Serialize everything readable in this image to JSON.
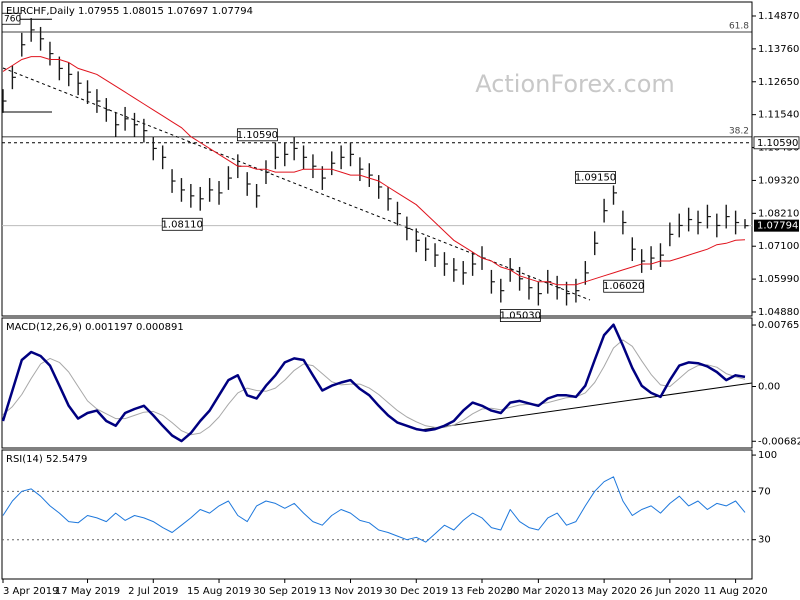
{
  "chart_data": [
    {
      "type": "ohlc",
      "title": "EURCHF,Daily  1.07955 1.08015 1.07697 1.07794",
      "watermark": "ActionForex.com",
      "bar_color": "#1a1a1a",
      "xlim": [
        0,
        79
      ],
      "ylim": [
        1.04745,
        1.15342
      ],
      "yticks": [
        {
          "value": 1.1487,
          "label": "1.14870"
        },
        {
          "value": 1.1376,
          "label": "1.13760"
        },
        {
          "value": 1.1265,
          "label": "1.12650"
        },
        {
          "value": 1.1154,
          "label": "1.11540"
        },
        {
          "value": 1.1043,
          "label": "1.10430"
        },
        {
          "value": 1.0932,
          "label": "1.09320"
        },
        {
          "value": 1.0821,
          "label": "1.08210"
        },
        {
          "value": 1.071,
          "label": "1.07100"
        },
        {
          "value": 1.0599,
          "label": "1.05990"
        },
        {
          "value": 1.0488,
          "label": "1.04880"
        }
      ],
      "high": [
        1.124,
        1.132,
        1.143,
        1.148,
        1.145,
        1.14,
        1.135,
        1.133,
        1.13,
        1.127,
        1.124,
        1.121,
        1.116,
        1.118,
        1.116,
        1.114,
        1.108,
        1.105,
        1.097,
        1.094,
        1.092,
        1.091,
        1.094,
        1.093,
        1.098,
        1.102,
        1.096,
        1.092,
        1.1,
        1.106,
        1.106,
        1.108,
        1.105,
        1.102,
        1.098,
        1.103,
        1.105,
        1.106,
        1.101,
        1.099,
        1.095,
        1.091,
        1.086,
        1.081,
        1.077,
        1.074,
        1.072,
        1.069,
        1.067,
        1.066,
        1.069,
        1.071,
        1.063,
        1.06,
        1.067,
        1.064,
        1.061,
        1.059,
        1.063,
        1.061,
        1.059,
        1.06,
        1.066,
        1.076,
        1.087,
        1.0915,
        1.083,
        1.074,
        1.07,
        1.071,
        1.072,
        1.079,
        1.082,
        1.084,
        1.083,
        1.085,
        1.082,
        1.085,
        1.083,
        1.08015
      ],
      "low": [
        1.116,
        1.124,
        1.135,
        1.14,
        1.137,
        1.132,
        1.127,
        1.125,
        1.122,
        1.119,
        1.116,
        1.113,
        1.108,
        1.11,
        1.108,
        1.106,
        1.1,
        1.097,
        1.089,
        1.086,
        1.084,
        1.083,
        1.086,
        1.085,
        1.09,
        1.094,
        1.088,
        1.084,
        1.092,
        1.097,
        1.098,
        1.1,
        1.097,
        1.094,
        1.09,
        1.095,
        1.097,
        1.098,
        1.093,
        1.091,
        1.087,
        1.083,
        1.078,
        1.073,
        1.069,
        1.066,
        1.064,
        1.061,
        1.059,
        1.058,
        1.061,
        1.063,
        1.055,
        1.052,
        1.059,
        1.056,
        1.053,
        1.051,
        1.055,
        1.053,
        1.051,
        1.052,
        1.058,
        1.068,
        1.079,
        1.085,
        1.075,
        1.066,
        1.062,
        1.063,
        1.064,
        1.071,
        1.074,
        1.076,
        1.075,
        1.077,
        1.074,
        1.077,
        1.075,
        1.07697
      ],
      "close": [
        1.12,
        1.128,
        1.139,
        1.144,
        1.141,
        1.136,
        1.131,
        1.129,
        1.126,
        1.123,
        1.12,
        1.117,
        1.112,
        1.114,
        1.112,
        1.11,
        1.104,
        1.101,
        1.093,
        1.09,
        1.088,
        1.087,
        1.09,
        1.089,
        1.094,
        1.098,
        1.092,
        1.088,
        1.096,
        1.101,
        1.102,
        1.104,
        1.101,
        1.098,
        1.094,
        1.099,
        1.101,
        1.102,
        1.097,
        1.095,
        1.091,
        1.087,
        1.082,
        1.077,
        1.073,
        1.07,
        1.068,
        1.065,
        1.063,
        1.062,
        1.065,
        1.067,
        1.059,
        1.056,
        1.063,
        1.06,
        1.057,
        1.055,
        1.059,
        1.057,
        1.055,
        1.056,
        1.062,
        1.072,
        1.083,
        1.089,
        1.079,
        1.07,
        1.066,
        1.067,
        1.068,
        1.075,
        1.078,
        1.08,
        1.079,
        1.081,
        1.078,
        1.081,
        1.079,
        1.07794
      ],
      "ma": {
        "color": "#e0141e",
        "values": [
          1.13,
          1.132,
          1.134,
          1.135,
          1.135,
          1.134,
          1.134,
          1.133,
          1.131,
          1.13,
          1.129,
          1.127,
          1.125,
          1.123,
          1.121,
          1.119,
          1.117,
          1.115,
          1.113,
          1.111,
          1.108,
          1.106,
          1.104,
          1.102,
          1.1,
          1.098,
          1.098,
          1.097,
          1.097,
          1.096,
          1.096,
          1.096,
          1.097,
          1.097,
          1.097,
          1.097,
          1.096,
          1.095,
          1.095,
          1.094,
          1.093,
          1.091,
          1.089,
          1.087,
          1.085,
          1.082,
          1.079,
          1.076,
          1.073,
          1.071,
          1.069,
          1.067,
          1.066,
          1.064,
          1.063,
          1.061,
          1.06,
          1.059,
          1.059,
          1.058,
          1.058,
          1.058,
          1.059,
          1.06,
          1.061,
          1.062,
          1.063,
          1.064,
          1.065,
          1.065,
          1.066,
          1.066,
          1.067,
          1.068,
          1.069,
          1.07,
          1.0715,
          1.072,
          1.073,
          1.0732
        ]
      },
      "fibs": [
        {
          "value": 1.1433,
          "label": "61.8"
        },
        {
          "value": 1.1079,
          "label": "38.2"
        }
      ],
      "short_levels": [
        {
          "value": 1.1476,
          "label": "760"
        },
        {
          "value": 1.1163
        }
      ],
      "levels": [
        {
          "value": 1.1059,
          "label": "1.10590"
        }
      ],
      "last_price": {
        "value": 1.07794,
        "label": "1.07794"
      },
      "annotations": [
        {
          "index": 29,
          "value": 1.1059,
          "label": "1.10590"
        },
        {
          "index": 21,
          "value": 1.0811,
          "label": "1.08110"
        },
        {
          "index": 65,
          "value": 1.0915,
          "label": "1.09150"
        },
        {
          "index": 68,
          "value": 1.0602,
          "label": "1.06020"
        },
        {
          "index": 57,
          "value": 1.0503,
          "label": "1.05030"
        }
      ]
    },
    {
      "type": "line",
      "title": "MACD(12,26,9) 0.001197 0.000891",
      "xlim": [
        0,
        79
      ],
      "ylim": [
        -0.00766,
        0.00853
      ],
      "yticks": [
        0.007655,
        {
          "value": 0,
          "label": "0.00"
        },
        -0.006822
      ],
      "series": [
        {
          "color": "#000080",
          "values": [
            -0.0043,
            -0.0005,
            0.0033,
            0.0043,
            0.0038,
            0.0026,
            0.0001,
            -0.0024,
            -0.004,
            -0.0033,
            -0.003,
            -0.0043,
            -0.0049,
            -0.0033,
            -0.0028,
            -0.0024,
            -0.0036,
            -0.0049,
            -0.0061,
            -0.0068,
            -0.0058,
            -0.0043,
            -0.003,
            -0.0011,
            0.0008,
            0.0014,
            -0.0011,
            -0.0015,
            0.0001,
            0.0014,
            0.003,
            0.0035,
            0.0033,
            0.0014,
            -0.0005,
            0.0001,
            0.0005,
            0.0008,
            -0.0003,
            -0.0011,
            -0.0024,
            -0.0036,
            -0.0045,
            -0.0049,
            -0.0053,
            -0.0055,
            -0.0053,
            -0.0049,
            -0.0043,
            -0.003,
            -0.002,
            -0.0024,
            -0.003,
            -0.0033,
            -0.002,
            -0.0018,
            -0.0021,
            -0.0024,
            -0.0015,
            -0.0011,
            -0.0011,
            -0.0013,
            0.0001,
            0.0033,
            0.0064,
            0.0077,
            0.0051,
            0.0023,
            0.0001,
            -0.0008,
            -0.0013,
            0.0008,
            0.0026,
            0.003,
            0.0029,
            0.0025,
            0.0018,
            0.0008,
            0.0014,
            0.001197
          ]
        },
        {
          "color": "#a8a8a8",
          "values": [
            -0.0035,
            -0.0025,
            -0.001,
            0.001,
            0.0028,
            0.0035,
            0.003,
            0.0018,
            0.0,
            -0.0018,
            -0.0028,
            -0.0034,
            -0.004,
            -0.004,
            -0.0036,
            -0.0032,
            -0.0031,
            -0.0036,
            -0.0045,
            -0.0055,
            -0.006,
            -0.0058,
            -0.005,
            -0.0038,
            -0.0022,
            -0.0008,
            -0.0002,
            -0.0005,
            -0.0006,
            -0.0002,
            0.0008,
            0.002,
            0.0028,
            0.0026,
            0.0016,
            0.0006,
            0.0002,
            0.0003,
            0.0003,
            -0.0002,
            -0.001,
            -0.002,
            -0.003,
            -0.0038,
            -0.0044,
            -0.0049,
            -0.0051,
            -0.0051,
            -0.0048,
            -0.0042,
            -0.0034,
            -0.0028,
            -0.0027,
            -0.0029,
            -0.0026,
            -0.0023,
            -0.0022,
            -0.0022,
            -0.002,
            -0.0017,
            -0.0014,
            -0.0013,
            -0.0008,
            0.0005,
            0.0025,
            0.0048,
            0.0058,
            0.005,
            0.0032,
            0.0015,
            0.0002,
            0.0,
            0.001,
            0.002,
            0.0026,
            0.0027,
            0.0024,
            0.0016,
            0.0012,
            0.000891
          ]
        }
      ]
    },
    {
      "type": "line",
      "title": "RSI(14) 52.5479",
      "xlim": [
        0,
        79
      ],
      "ylim": [
        -2.5,
        104.2
      ],
      "yticks": [
        100,
        70,
        30
      ],
      "levels": [
        70,
        30
      ],
      "series": [
        {
          "color": "#1e78dc",
          "values": [
            50,
            62,
            70,
            72,
            66,
            58,
            52,
            45,
            44,
            50,
            48,
            45,
            52,
            46,
            50,
            48,
            45,
            40,
            36,
            42,
            48,
            55,
            52,
            58,
            62,
            50,
            45,
            58,
            62,
            60,
            56,
            60,
            52,
            45,
            42,
            50,
            55,
            52,
            46,
            44,
            38,
            36,
            33,
            30,
            32,
            28,
            35,
            42,
            38,
            46,
            52,
            48,
            40,
            38,
            55,
            45,
            40,
            38,
            48,
            52,
            42,
            45,
            58,
            70,
            78,
            82,
            62,
            50,
            55,
            58,
            52,
            60,
            66,
            58,
            62,
            55,
            60,
            58,
            62,
            52.5479
          ]
        }
      ],
      "x_labels": [
        {
          "value": 0,
          "label": "3 Apr 2019"
        },
        {
          "value": 9,
          "label": "17 May 2019"
        },
        {
          "value": 16,
          "label": "2 Jul 2019"
        },
        {
          "value": 23,
          "label": "15 Aug 2019"
        },
        {
          "value": 30,
          "label": "30 Sep 2019"
        },
        {
          "value": 37,
          "label": "13 Nov 2019"
        },
        {
          "value": 44,
          "label": "30 Dec 2019"
        },
        {
          "value": 51,
          "label": "13 Feb 2020"
        },
        {
          "value": 57,
          "label": "30 Mar 2020"
        },
        {
          "value": 64,
          "label": "13 May 2020"
        },
        {
          "value": 71,
          "label": "26 Jun 2020"
        },
        {
          "value": 78,
          "label": "11 Aug 2020"
        }
      ]
    }
  ]
}
